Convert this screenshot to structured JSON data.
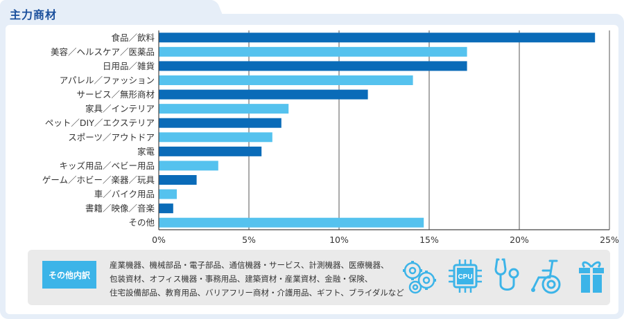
{
  "header": {
    "title": "主力商材"
  },
  "chart_data": {
    "type": "bar",
    "orientation": "horizontal",
    "categories": [
      "食品／飲料",
      "美容／ヘルスケア／医薬品",
      "日用品／雑貨",
      "アパレル／ファッション",
      "サービス／無形商材",
      "家具／インテリア",
      "ペット／DIY／エクステリア",
      "スポーツ／アウトドア",
      "家電",
      "キッズ用品／ベビー用品",
      "ゲーム／ホビー／楽器／玩具",
      "車／バイク用品",
      "書籍／映像／音楽",
      "その他"
    ],
    "values": [
      24.2,
      17.1,
      17.1,
      14.1,
      11.6,
      7.2,
      6.8,
      6.3,
      5.7,
      3.3,
      2.1,
      1.0,
      0.8,
      14.7
    ],
    "xlim": [
      0,
      25
    ],
    "ticks": [
      "0%",
      "5%",
      "10%",
      "15%",
      "20%",
      "25%"
    ],
    "tick_values": [
      0,
      5,
      10,
      15,
      20,
      25
    ],
    "grid": true,
    "colors": [
      "#0a6bb8",
      "#55c2ee"
    ]
  },
  "other": {
    "label": "その他内訳",
    "lines": [
      "産業機器、機械部品・電子部品、通信機器・サービス、計測機器、医療機器、",
      "包装資材、オフィス機器・事務用品、建築資材・産業資材、金融・保険、",
      "住宅設備部品、教育用品、バリアフリー商材・介護用品、ギフト、ブライダルなど"
    ],
    "icons": [
      "gears-icon",
      "cpu-icon",
      "stethoscope-icon",
      "wheelchair-icon",
      "gift-icon"
    ],
    "cpu_text": "CPU",
    "icon_color": "#3cb4e8"
  }
}
